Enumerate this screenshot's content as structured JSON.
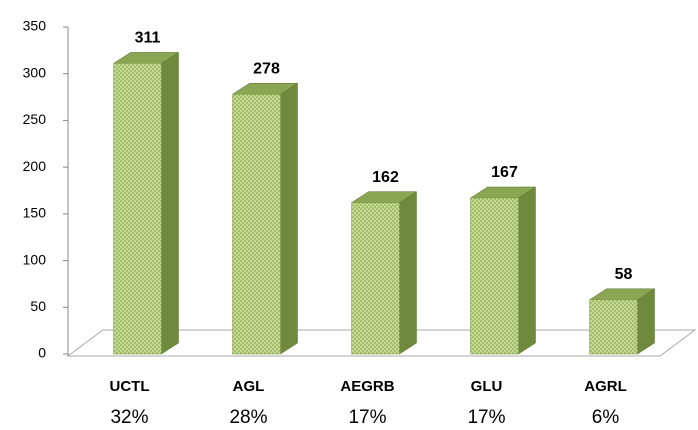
{
  "chart_data": {
    "type": "bar3d",
    "categories": [
      "UCTL",
      "AGL",
      "AEGRB",
      "GLU",
      "AGRL"
    ],
    "shares": [
      "32%",
      "28%",
      "17%",
      "17%",
      "6%"
    ],
    "values": [
      311,
      278,
      162,
      167,
      58
    ],
    "color": "#b5cf7f",
    "ylim": [
      0,
      350
    ],
    "yticks": [
      0,
      50,
      100,
      150,
      200,
      250,
      300,
      350
    ]
  }
}
